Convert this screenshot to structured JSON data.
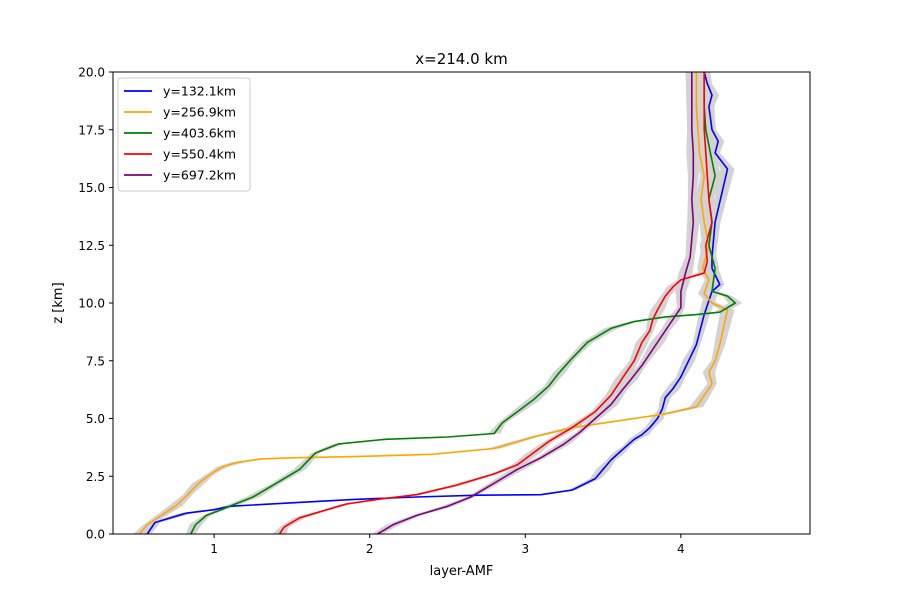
{
  "chart_data": {
    "type": "line",
    "title": "x=214.0 km",
    "xlabel": "layer-AMF",
    "ylabel": "z [km]",
    "xlim": [
      0.35,
      4.83
    ],
    "ylim": [
      0,
      20
    ],
    "xticks": [
      1,
      2,
      3,
      4
    ],
    "yticks": [
      0.0,
      2.5,
      5.0,
      7.5,
      10.0,
      12.5,
      15.0,
      17.5,
      20.0
    ],
    "xtick_labels": [
      "1",
      "2",
      "3",
      "4"
    ],
    "ytick_labels": [
      "0.0",
      "2.5",
      "5.0",
      "7.5",
      "10.0",
      "12.5",
      "15.0",
      "17.5",
      "20.0"
    ],
    "grid": false,
    "legend_position": "top-left",
    "uncertainty_band_color": "#d3d3d3",
    "series": [
      {
        "name": "y=132.1km",
        "color": "#0000ff",
        "x": [
          0.57,
          0.62,
          0.82,
          1.0,
          1.1,
          1.5,
          1.9,
          2.3,
          2.7,
          3.1,
          3.3,
          3.45,
          3.5,
          3.55,
          3.6,
          3.65,
          3.7,
          3.75,
          3.8,
          3.85,
          3.88,
          3.9,
          3.95,
          4.0,
          4.05,
          4.1,
          4.15,
          4.2,
          4.25,
          4.2,
          4.2,
          4.22,
          4.3,
          4.22,
          4.24,
          4.2,
          4.18,
          4.2,
          4.17,
          4.15
        ],
        "y": [
          0.0,
          0.5,
          0.9,
          1.05,
          1.2,
          1.35,
          1.5,
          1.6,
          1.68,
          1.7,
          1.9,
          2.4,
          2.8,
          3.2,
          3.5,
          3.8,
          4.1,
          4.3,
          4.6,
          5.0,
          5.4,
          5.9,
          6.3,
          6.8,
          7.5,
          8.2,
          9.5,
          10.5,
          10.8,
          11.5,
          12.0,
          13.5,
          15.8,
          16.5,
          17.0,
          17.5,
          18.5,
          19.0,
          19.5,
          20.0
        ]
      },
      {
        "name": "y=256.9km",
        "color": "#ffa500",
        "x": [
          0.52,
          0.57,
          0.66,
          0.75,
          0.83,
          0.9,
          0.98,
          1.05,
          1.15,
          1.3,
          1.5,
          1.9,
          2.4,
          2.8,
          3.05,
          3.3,
          3.6,
          3.9,
          4.1,
          4.2,
          4.18,
          4.22,
          4.25,
          4.3,
          4.2,
          4.15,
          4.18,
          4.14,
          4.18,
          4.15,
          4.13,
          4.15,
          4.12,
          4.11,
          4.1,
          4.1
        ],
        "y": [
          0.0,
          0.4,
          0.8,
          1.2,
          1.7,
          2.2,
          2.6,
          2.9,
          3.1,
          3.25,
          3.3,
          3.35,
          3.45,
          3.7,
          4.2,
          4.6,
          4.9,
          5.2,
          5.5,
          6.5,
          7.0,
          7.5,
          8.2,
          9.7,
          10.0,
          10.4,
          11.0,
          11.5,
          12.5,
          13.5,
          14.5,
          15.5,
          16.5,
          17.5,
          18.5,
          20.0
        ]
      },
      {
        "name": "y=403.6km",
        "color": "#008000",
        "x": [
          0.85,
          0.88,
          0.95,
          1.1,
          1.25,
          1.4,
          1.55,
          1.65,
          1.8,
          2.1,
          2.5,
          2.8,
          2.85,
          2.95,
          3.05,
          3.15,
          3.22,
          3.3,
          3.4,
          3.55,
          3.7,
          3.9,
          4.1,
          4.25,
          4.35,
          4.3,
          4.2,
          4.22,
          4.18,
          4.2,
          4.18,
          4.22,
          4.19,
          4.16,
          4.15,
          4.15
        ],
        "y": [
          0.0,
          0.4,
          0.8,
          1.2,
          1.6,
          2.2,
          2.8,
          3.5,
          3.9,
          4.1,
          4.2,
          4.35,
          4.8,
          5.3,
          5.8,
          6.4,
          7.0,
          7.6,
          8.3,
          8.9,
          9.2,
          9.4,
          9.5,
          9.6,
          10.0,
          10.3,
          10.5,
          11.5,
          12.5,
          13.5,
          14.5,
          15.5,
          16.5,
          17.5,
          18.5,
          20.0
        ]
      },
      {
        "name": "y=550.4km",
        "color": "#ff0000",
        "x": [
          1.42,
          1.45,
          1.55,
          1.7,
          1.85,
          2.05,
          2.3,
          2.55,
          2.8,
          2.95,
          3.05,
          3.15,
          3.3,
          3.45,
          3.55,
          3.62,
          3.7,
          3.75,
          3.8,
          3.82,
          3.85,
          3.9,
          3.95,
          4.0,
          4.1,
          4.15,
          4.17,
          4.16,
          4.2,
          4.18,
          4.17,
          4.16,
          4.15,
          4.15
        ],
        "y": [
          0.0,
          0.3,
          0.7,
          1.0,
          1.3,
          1.5,
          1.7,
          2.1,
          2.6,
          3.0,
          3.5,
          4.0,
          4.6,
          5.3,
          6.0,
          6.7,
          7.5,
          8.3,
          8.8,
          9.3,
          9.7,
          10.3,
          10.7,
          11.0,
          11.2,
          11.3,
          11.8,
          12.5,
          13.5,
          14.5,
          15.5,
          16.5,
          17.5,
          20.0
        ]
      },
      {
        "name": "y=697.2km",
        "color": "#800080",
        "x": [
          2.05,
          2.15,
          2.3,
          2.5,
          2.65,
          2.8,
          2.95,
          3.1,
          3.25,
          3.35,
          3.45,
          3.55,
          3.62,
          3.68,
          3.75,
          3.8,
          3.85,
          3.9,
          3.95,
          4.0,
          4.0,
          4.03,
          4.06,
          4.08,
          4.07,
          4.08,
          4.08,
          4.07,
          4.07
        ],
        "y": [
          0.0,
          0.4,
          0.8,
          1.2,
          1.6,
          2.2,
          2.8,
          3.3,
          3.9,
          4.4,
          5.0,
          5.6,
          6.2,
          6.7,
          7.3,
          7.8,
          8.3,
          8.8,
          9.3,
          9.8,
          10.5,
          11.3,
          12.0,
          13.5,
          14.5,
          15.5,
          16.5,
          17.5,
          20.0
        ]
      }
    ]
  }
}
